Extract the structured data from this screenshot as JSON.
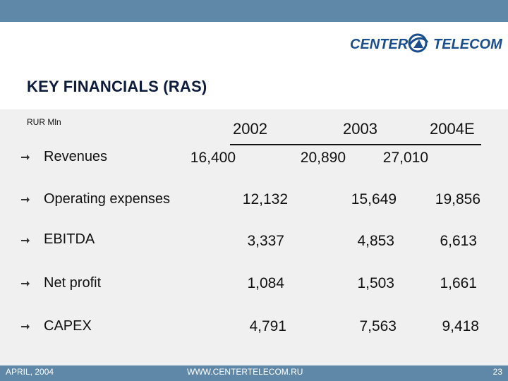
{
  "brand": {
    "logo_text_1": "CENTER",
    "logo_text_2": "TELECOM",
    "logo_icon": "globe-swirl-icon",
    "color": "#1a4d8c"
  },
  "slide": {
    "title": "KEY FINANCIALS (RAS)",
    "unit": "RUR Mln",
    "years": [
      "2002",
      "2003",
      "2004E"
    ]
  },
  "rows": [
    {
      "label": "Revenues",
      "values": [
        "16,400",
        "20,890",
        "27,010"
      ]
    },
    {
      "label": "Operating expenses",
      "values": [
        "12,132",
        "15,649",
        "19,856"
      ]
    },
    {
      "label": "EBITDA",
      "values": [
        "3,337",
        "4,853",
        "6,613"
      ]
    },
    {
      "label": "Net profit",
      "values": [
        "1,084",
        "1,503",
        "1,661"
      ]
    },
    {
      "label": "CAPEX",
      "values": [
        "4,791",
        "7,563",
        "9,418"
      ]
    }
  ],
  "footer": {
    "date": "APRIL, 2004",
    "website": "WWW.CENTERTELECOM.RU",
    "page": "23"
  },
  "colors": {
    "bar": "#5f87a7",
    "title": "#0d1b3d",
    "panel": "#f0f0f0"
  }
}
